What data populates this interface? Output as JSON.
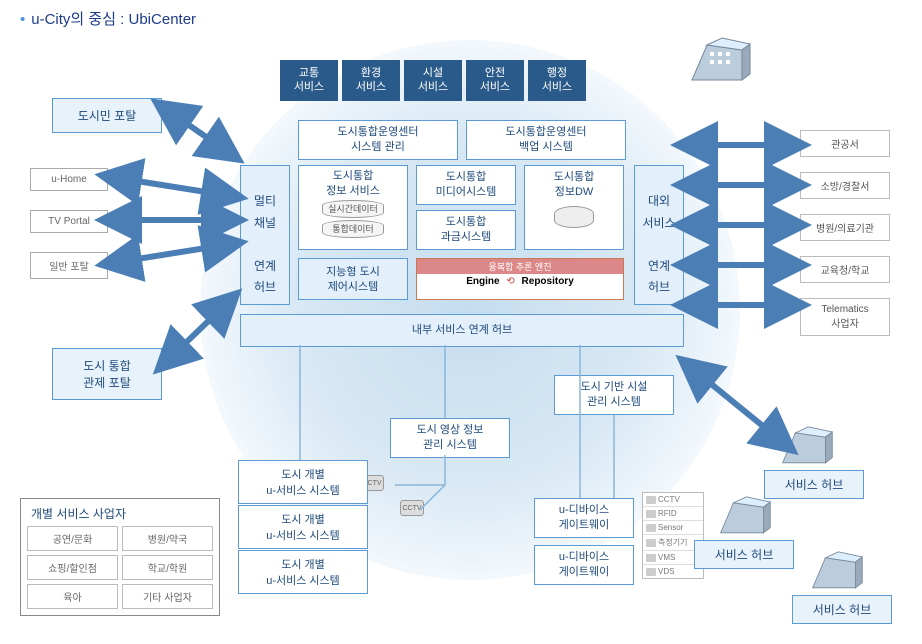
{
  "title": "u-City의 중심 : UbiCenter",
  "colors": {
    "accent": "#5b9bd5",
    "dark": "#2a5a8a",
    "text": "#1e4a7a",
    "arrow": "#4a7eb5"
  },
  "service_tabs": [
    "교통\n서비스",
    "환경\n서비스",
    "시설\n서비스",
    "안전\n서비스",
    "행정\n서비스"
  ],
  "left_portals": {
    "citizen": "도시민 포탈",
    "control": "도시 통합\n관제 포탈",
    "small": [
      "u-Home",
      "TV Portal",
      "일반 포탈"
    ]
  },
  "center": {
    "multi_hub": "멀티\n채널\n\n연계\n허브",
    "ext_hub": "대외\n서비스\n\n연계\n허브",
    "row1": [
      "도시통합운영센터\n시스템 관리",
      "도시통합운영센터\n백업 시스템"
    ],
    "info_svc": "도시통합\n정보 서비스",
    "media": "도시통합\n미디어시스템",
    "billing": "도시통합\n과금시스템",
    "dw": "도시통합\n정보DW",
    "cyls": [
      "실시간데이터",
      "통합데이터"
    ],
    "intel": "지능형 도시\n제어시스템",
    "engine_title": "융복합 추론 엔진",
    "engine": "Engine",
    "repo": "Repository",
    "internal_hub": "내부 서비스 연계 허브"
  },
  "external": [
    "관공서",
    "소방/경찰서",
    "병원/의료기관",
    "교육청/학교",
    "Telematics\n사업자"
  ],
  "bottom": {
    "facility": "도시 기반 시설\n관리 시스템",
    "video": "도시 영상 정보\n관리 시스템",
    "gateway": "u-디바이스\n게이트웨이",
    "svc_hub": "서비스 허브",
    "cctv": "CCTV"
  },
  "usvc": "도시 개별\nu-서비스 시스템",
  "sp": {
    "title": "개별 서비스 사업자",
    "cells": [
      "공연/문화",
      "병원/약국",
      "쇼핑/할인점",
      "학교/학원",
      "육아",
      "기타 사업자"
    ]
  },
  "devices": [
    "CCTV",
    "RFID",
    "Sensor",
    "측정기기",
    "VMS",
    "VDS"
  ]
}
